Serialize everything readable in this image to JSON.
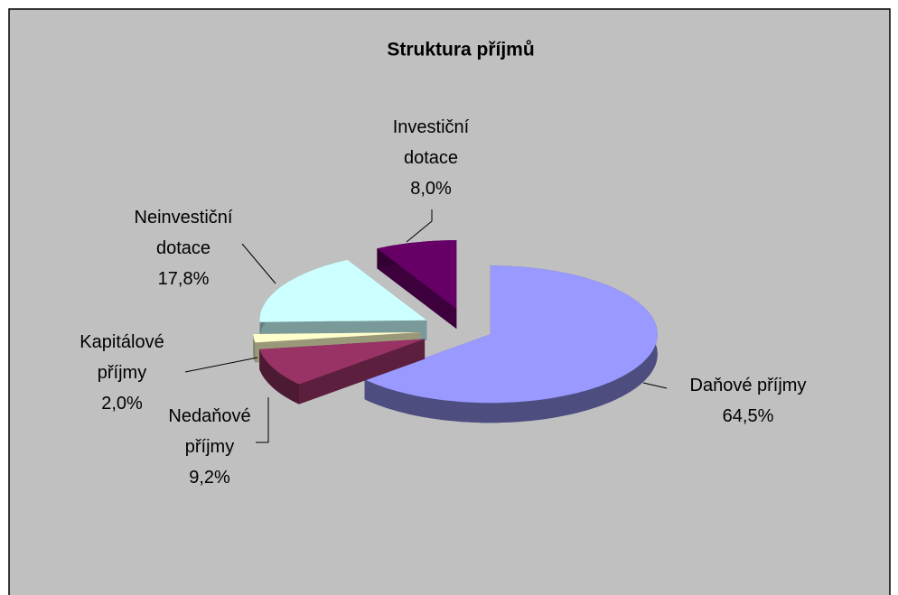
{
  "chart_data": {
    "type": "pie3d",
    "title": "Struktura příjmů",
    "categories": [
      "Daňové příjmy",
      "Nedaňové příjmy",
      "Kapitálové příjmy",
      "Neinvestiční dotace",
      "Investiční dotace"
    ],
    "values": [
      64.5,
      9.2,
      2.0,
      17.8,
      8.0
    ],
    "value_labels": [
      "64,5%",
      "9,2%",
      "2,0%",
      "17,8%",
      "8,0%"
    ],
    "colors": [
      "#9999ff",
      "#993366",
      "#ffffcc",
      "#ccffff",
      "#660066"
    ]
  }
}
